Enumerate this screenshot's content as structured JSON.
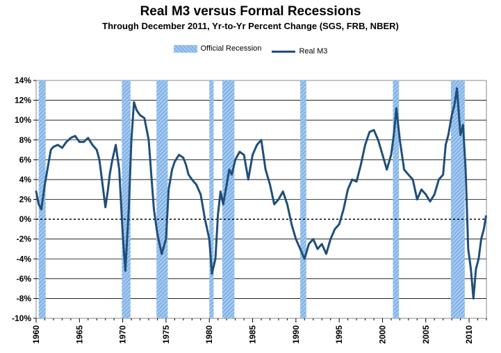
{
  "title": "Real M3 versus Formal Recessions",
  "subtitle": "Through December 2011, Yr-to-Yr  Percent Change (SGS, FRB, NBER)",
  "legend": {
    "recession_label": "Official Recession",
    "line_label": "Real M3"
  },
  "colors": {
    "line": "#1f4e79",
    "recession": "#8db9ec"
  },
  "chart_data": {
    "type": "line",
    "title": "Real M3 versus Formal Recessions",
    "subtitle": "Through December 2011, Yr-to-Yr  Percent Change (SGS, FRB, NBER)",
    "xlabel": "",
    "ylabel": "",
    "xlim": [
      1960,
      2012
    ],
    "ylim": [
      -10,
      14
    ],
    "ytick_labels": [
      "14%",
      "12%",
      "10%",
      "8%",
      "6%",
      "4%",
      "2%",
      "0%",
      "-2%",
      "-4%",
      "-6%",
      "-8%",
      "-10%"
    ],
    "xtick_labels": [
      "1960",
      "1965",
      "1970",
      "1975",
      "1980",
      "1985",
      "1990",
      "1995",
      "2000",
      "2005",
      "2010"
    ],
    "grid": "horizontal",
    "legend_position": "top",
    "recessions": [
      [
        1960.3,
        1961.1
      ],
      [
        1969.9,
        1970.9
      ],
      [
        1973.9,
        1975.2
      ],
      [
        1980.0,
        1980.5
      ],
      [
        1981.5,
        1982.9
      ],
      [
        1990.5,
        1991.2
      ],
      [
        2001.2,
        2001.9
      ],
      [
        2007.9,
        2009.5
      ]
    ],
    "series": [
      {
        "name": "Real M3",
        "x": [
          1960.0,
          1960.3,
          1960.6,
          1961.0,
          1961.3,
          1961.7,
          1962.0,
          1962.5,
          1963.0,
          1963.5,
          1964.0,
          1964.5,
          1965.0,
          1965.5,
          1966.0,
          1966.5,
          1967.0,
          1967.3,
          1967.6,
          1968.0,
          1968.3,
          1968.5,
          1968.8,
          1969.2,
          1969.6,
          1970.0,
          1970.3,
          1970.7,
          1971.0,
          1971.3,
          1971.6,
          1972.0,
          1972.5,
          1973.0,
          1973.3,
          1973.6,
          1974.0,
          1974.5,
          1975.0,
          1975.3,
          1975.7,
          1976.0,
          1976.5,
          1977.0,
          1977.3,
          1977.6,
          1978.0,
          1978.5,
          1979.0,
          1979.5,
          1980.0,
          1980.3,
          1980.7,
          1981.0,
          1981.3,
          1981.6,
          1982.0,
          1982.3,
          1982.6,
          1983.0,
          1983.5,
          1984.0,
          1984.5,
          1985.0,
          1985.5,
          1986.0,
          1986.5,
          1987.0,
          1987.5,
          1988.0,
          1988.5,
          1989.0,
          1989.5,
          1990.0,
          1990.5,
          1991.0,
          1991.5,
          1992.0,
          1992.5,
          1993.0,
          1993.5,
          1994.0,
          1994.5,
          1995.0,
          1995.5,
          1996.0,
          1996.5,
          1997.0,
          1997.5,
          1998.0,
          1998.5,
          1999.0,
          1999.5,
          2000.0,
          2000.5,
          2001.0,
          2001.3,
          2001.6,
          2002.0,
          2002.5,
          2003.0,
          2003.5,
          2004.0,
          2004.5,
          2005.0,
          2005.5,
          2006.0,
          2006.5,
          2007.0,
          2007.3,
          2007.6,
          2008.0,
          2008.3,
          2008.6,
          2009.0,
          2009.3,
          2009.6,
          2009.9,
          2010.2,
          2010.5,
          2010.8,
          2011.1,
          2011.4,
          2011.7,
          2011.95
        ],
        "values": [
          2.8,
          1.5,
          1.0,
          3.5,
          5.0,
          7.0,
          7.3,
          7.5,
          7.2,
          7.8,
          8.2,
          8.4,
          7.8,
          7.8,
          8.2,
          7.5,
          7.0,
          6.0,
          4.0,
          1.2,
          3.0,
          4.5,
          6.0,
          7.5,
          5.0,
          -1.5,
          -5.2,
          1.0,
          8.0,
          11.8,
          11.0,
          10.5,
          10.2,
          8.0,
          4.5,
          1.0,
          -1.5,
          -3.5,
          -2.0,
          3.0,
          5.0,
          5.8,
          6.5,
          6.2,
          5.5,
          4.5,
          4.0,
          3.5,
          2.5,
          0.0,
          -2.0,
          -5.5,
          -4.0,
          0.5,
          2.8,
          1.5,
          3.5,
          5.0,
          4.5,
          6.0,
          6.8,
          6.5,
          4.0,
          6.5,
          7.5,
          8.0,
          5.0,
          3.5,
          1.5,
          2.0,
          2.8,
          1.5,
          -0.5,
          -2.0,
          -3.0,
          -4.0,
          -2.5,
          -2.0,
          -3.0,
          -2.5,
          -3.5,
          -2.0,
          -1.0,
          -0.5,
          1.0,
          3.0,
          4.0,
          3.8,
          5.5,
          7.5,
          8.8,
          9.0,
          8.0,
          6.5,
          5.0,
          6.5,
          8.5,
          11.2,
          8.0,
          5.0,
          4.5,
          4.0,
          2.0,
          3.0,
          2.5,
          1.8,
          2.5,
          4.0,
          4.5,
          7.5,
          8.5,
          10.5,
          11.5,
          13.2,
          8.5,
          9.5,
          5.0,
          -3.0,
          -5.0,
          -8.0,
          -5.0,
          -4.0,
          -2.0,
          -1.0,
          0.3
        ]
      }
    ]
  }
}
